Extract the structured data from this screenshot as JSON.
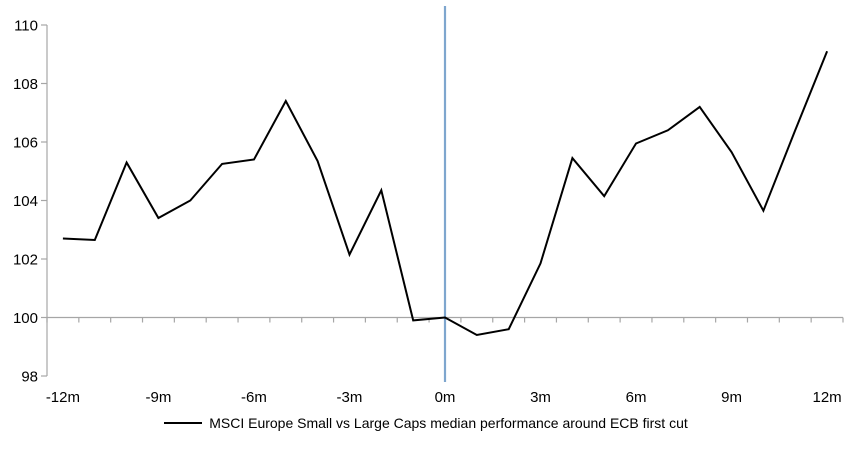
{
  "chart": {
    "colors": {
      "series_line": "#000000",
      "event_line": "#7EA6CE",
      "axis": "#A6A6A6",
      "text": "#000000"
    }
  },
  "chart_data": {
    "type": "line",
    "title": "",
    "xlabel": "",
    "ylabel": "",
    "x_months": [
      -12,
      -11,
      -10,
      -9,
      -8,
      -7,
      -6,
      -5,
      -4,
      -3,
      -2,
      -1,
      0,
      1,
      2,
      3,
      4,
      5,
      6,
      7,
      8,
      9,
      10,
      11,
      12
    ],
    "series": [
      {
        "name": "MSCI Europe Small vs Large Caps median performance around ECB first cut",
        "values": [
          102.7,
          102.65,
          105.3,
          103.4,
          104.0,
          105.25,
          105.4,
          107.4,
          105.35,
          102.15,
          104.35,
          99.9,
          100.0,
          99.4,
          99.6,
          101.85,
          105.45,
          104.15,
          105.95,
          106.4,
          107.2,
          105.65,
          103.65,
          106.4,
          109.1
        ]
      }
    ],
    "xticks": [
      {
        "month": -12,
        "label": "-12m"
      },
      {
        "month": -9,
        "label": "-9m"
      },
      {
        "month": -6,
        "label": "-6m"
      },
      {
        "month": -3,
        "label": "-3m"
      },
      {
        "month": 0,
        "label": "0m"
      },
      {
        "month": 3,
        "label": "3m"
      },
      {
        "month": 6,
        "label": "6m"
      },
      {
        "month": 9,
        "label": "9m"
      },
      {
        "month": 12,
        "label": "12m"
      }
    ],
    "yticks": [
      98,
      100,
      102,
      104,
      106,
      108,
      110
    ],
    "ylim": [
      98,
      110
    ],
    "baseline": 100,
    "event_line_x": 0,
    "grid": "baseline-only",
    "legend_position": "bottom-center"
  }
}
